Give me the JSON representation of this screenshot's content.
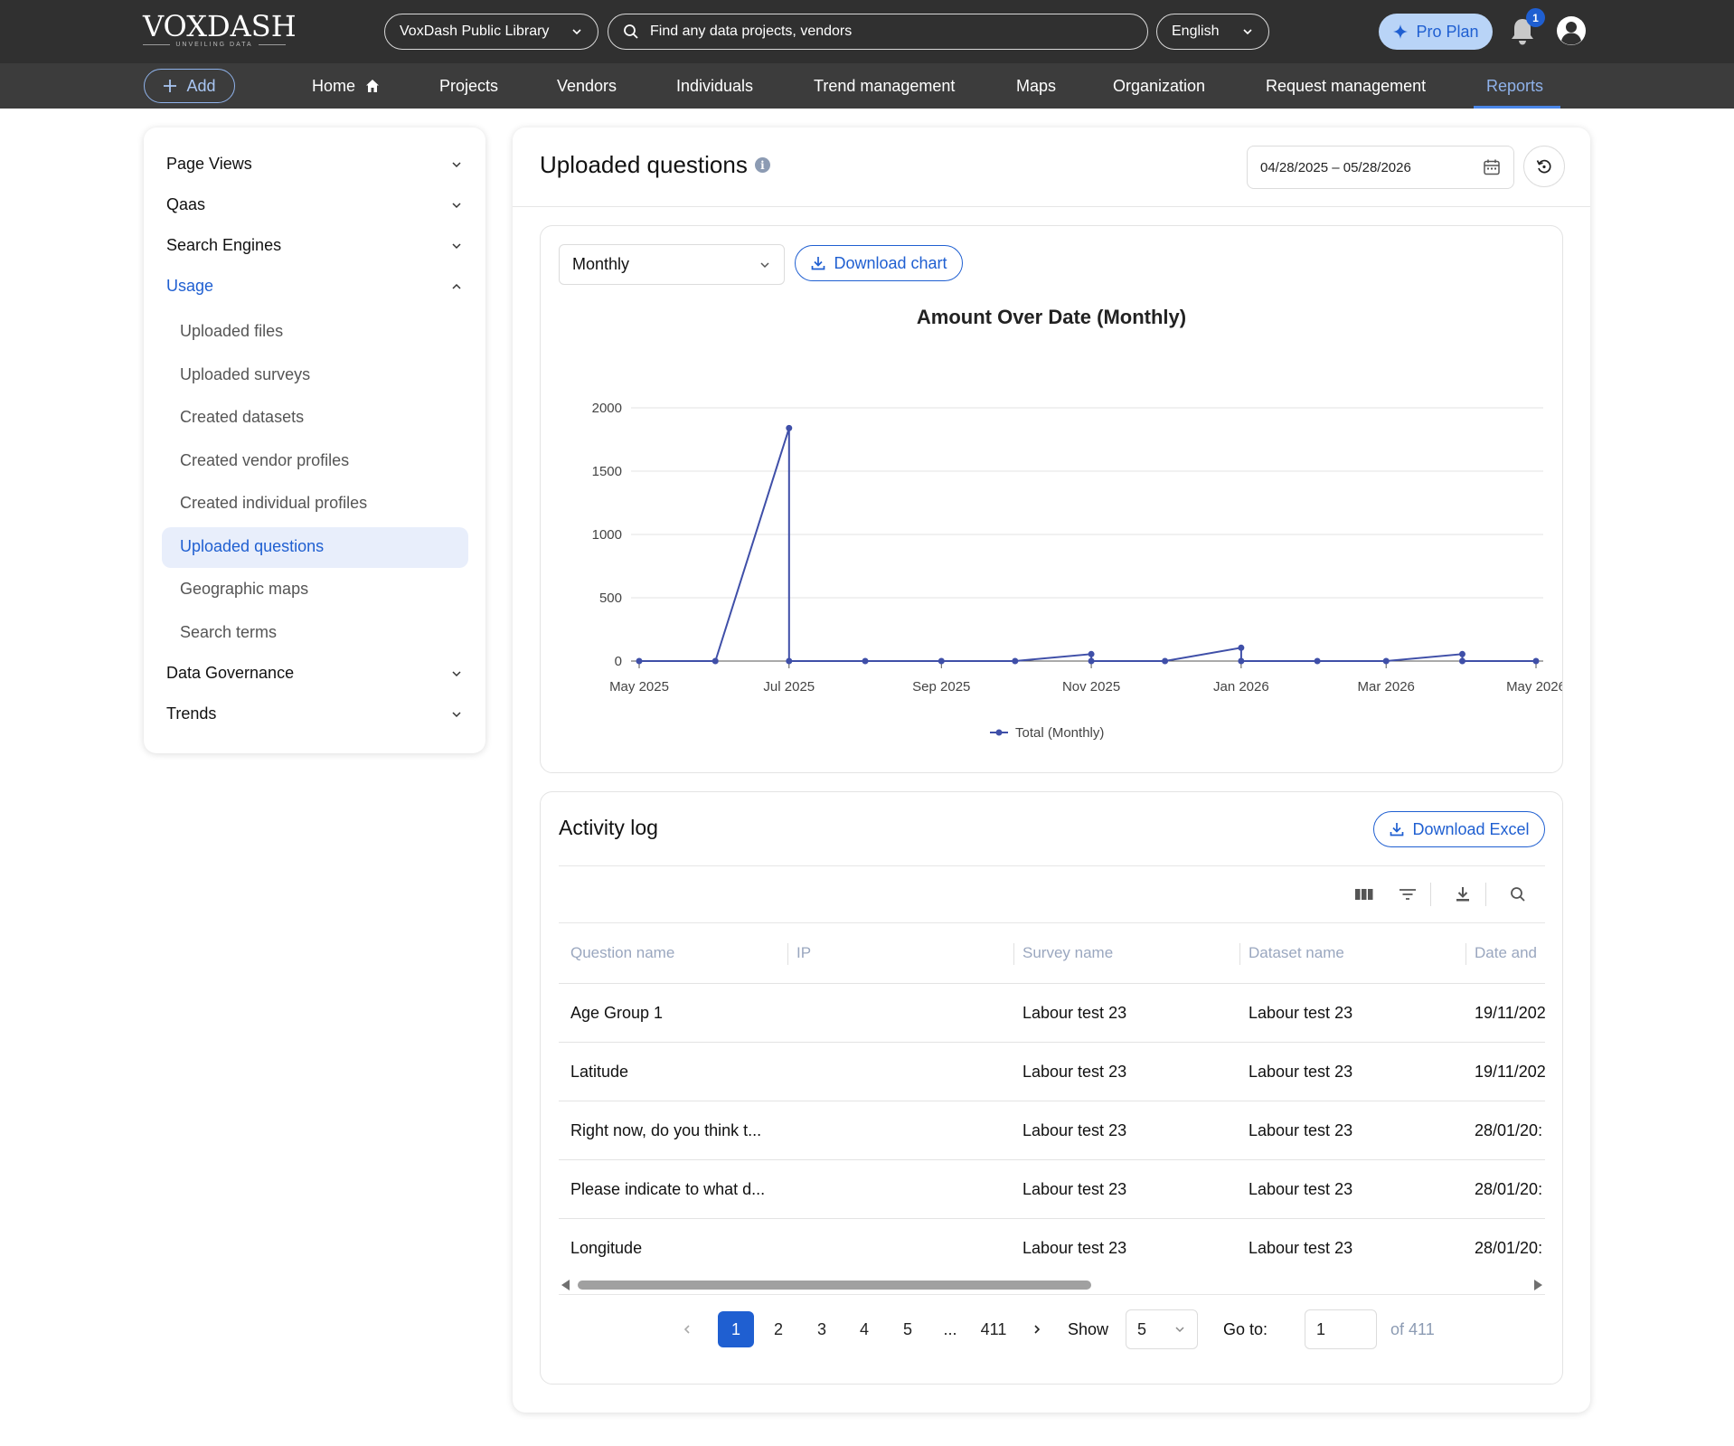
{
  "header": {
    "logo_text": "VOXDASH",
    "logo_tagline": "UNVEILING DATA",
    "library_select": "VoxDash Public Library",
    "search_placeholder": "Find any data projects, vendors",
    "language": "English",
    "pro_plan_label": "Pro Plan",
    "notification_count": "1"
  },
  "nav": {
    "add_label": "Add",
    "items": [
      "Home",
      "Projects",
      "Vendors",
      "Individuals",
      "Trend management",
      "Maps",
      "Organization",
      "Request management",
      "Reports"
    ],
    "active": "Reports"
  },
  "sidebar": {
    "groups": [
      {
        "label": "Page Views"
      },
      {
        "label": "Qaas"
      },
      {
        "label": "Search Engines"
      },
      {
        "label": "Usage"
      },
      {
        "label": "Data Governance"
      },
      {
        "label": "Trends"
      }
    ],
    "usage_items": [
      "Uploaded files",
      "Uploaded surveys",
      "Created datasets",
      "Created vendor profiles",
      "Created individual profiles",
      "Uploaded questions",
      "Geographic maps",
      "Search terms"
    ],
    "active_item": "Uploaded questions"
  },
  "main": {
    "title": "Uploaded questions",
    "date_range": "04/28/2025 – 05/28/2026",
    "period": "Monthly",
    "download_chart_label": "Download chart"
  },
  "chart_data": {
    "type": "line",
    "title": "Amount Over Date (Monthly)",
    "xlabel": "",
    "ylabel": "",
    "ylim": [
      0,
      2000
    ],
    "yticks": [
      "0",
      "500",
      "1000",
      "1500",
      "2000"
    ],
    "xticks": [
      "May 2025",
      "Jul 2025",
      "Sep 2025",
      "Nov 2025",
      "Jan 2026",
      "Mar 2026",
      "May 2026"
    ],
    "grid": true,
    "legend_position": "bottom",
    "series": [
      {
        "name": "Total (Monthly)",
        "color": "#3f4fa8",
        "points": [
          {
            "x": "2025-05-01",
            "y": 0
          },
          {
            "x": "2025-06-01",
            "y": 0
          },
          {
            "x": "2025-07-01",
            "y": 1840
          },
          {
            "x": "2025-07-01",
            "y": 0
          },
          {
            "x": "2025-08-01",
            "y": 0
          },
          {
            "x": "2025-09-01",
            "y": 0
          },
          {
            "x": "2025-10-01",
            "y": 0
          },
          {
            "x": "2025-11-01",
            "y": 55
          },
          {
            "x": "2025-11-01",
            "y": 0
          },
          {
            "x": "2025-12-01",
            "y": 0
          },
          {
            "x": "2026-01-01",
            "y": 105
          },
          {
            "x": "2026-01-01",
            "y": 0
          },
          {
            "x": "2026-02-01",
            "y": 0
          },
          {
            "x": "2026-03-01",
            "y": 0
          },
          {
            "x": "2026-04-01",
            "y": 55
          },
          {
            "x": "2026-04-01",
            "y": 0
          },
          {
            "x": "2026-05-01",
            "y": 0
          }
        ]
      }
    ]
  },
  "activity_log": {
    "title": "Activity log",
    "download_excel_label": "Download Excel",
    "columns": [
      "Question name",
      "IP",
      "Survey name",
      "Dataset name",
      "Date and"
    ],
    "rows": [
      [
        "Age Group 1",
        "",
        "Labour test 23",
        "Labour test 23",
        "19/11/202"
      ],
      [
        "Latitude",
        "",
        "Labour test 23",
        "Labour test 23",
        "19/11/202"
      ],
      [
        "Right now, do you think t...",
        "",
        "Labour test 23",
        "Labour test 23",
        "28/01/20:"
      ],
      [
        "Please indicate to what d...",
        "",
        "Labour test 23",
        "Labour test 23",
        "28/01/20:"
      ],
      [
        "Longitude",
        "",
        "Labour test 23",
        "Labour test 23",
        "28/01/20:"
      ]
    ],
    "pagination": {
      "pages": [
        "1",
        "2",
        "3",
        "4",
        "5",
        "...",
        "411"
      ],
      "current": "1",
      "show_label": "Show",
      "page_size": "5",
      "goto_label": "Go to:",
      "goto_value": "1",
      "of_total": "of 411"
    }
  }
}
